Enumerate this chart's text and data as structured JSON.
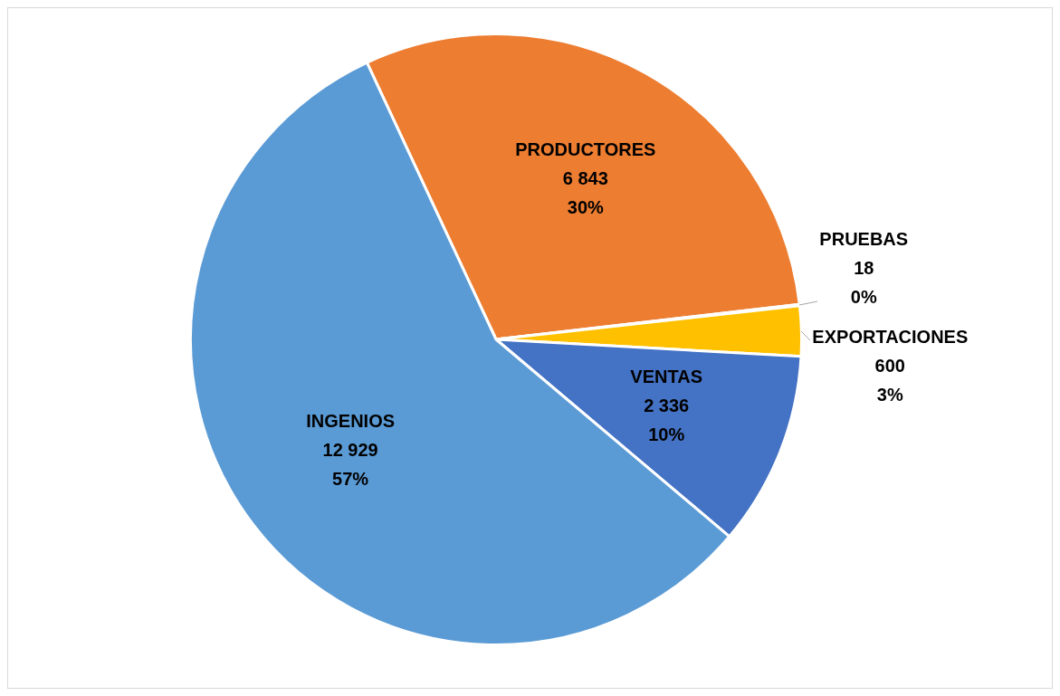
{
  "chart_data": {
    "type": "pie",
    "categories": [
      "PRODUCTORES",
      "PRUEBAS",
      "EXPORTACIONES",
      "VENTAS",
      "INGENIOS"
    ],
    "values": [
      6843,
      18,
      600,
      2336,
      12929
    ],
    "colors": [
      "#ed7d31",
      "#a5a5a5",
      "#ffc000",
      "#4472c4",
      "#5b9bd5"
    ],
    "value_labels": [
      "6 843\n30%",
      "18\n0%",
      "600\n3%",
      "2 336\n10%",
      "12 929\n57%"
    ],
    "legend": false
  }
}
